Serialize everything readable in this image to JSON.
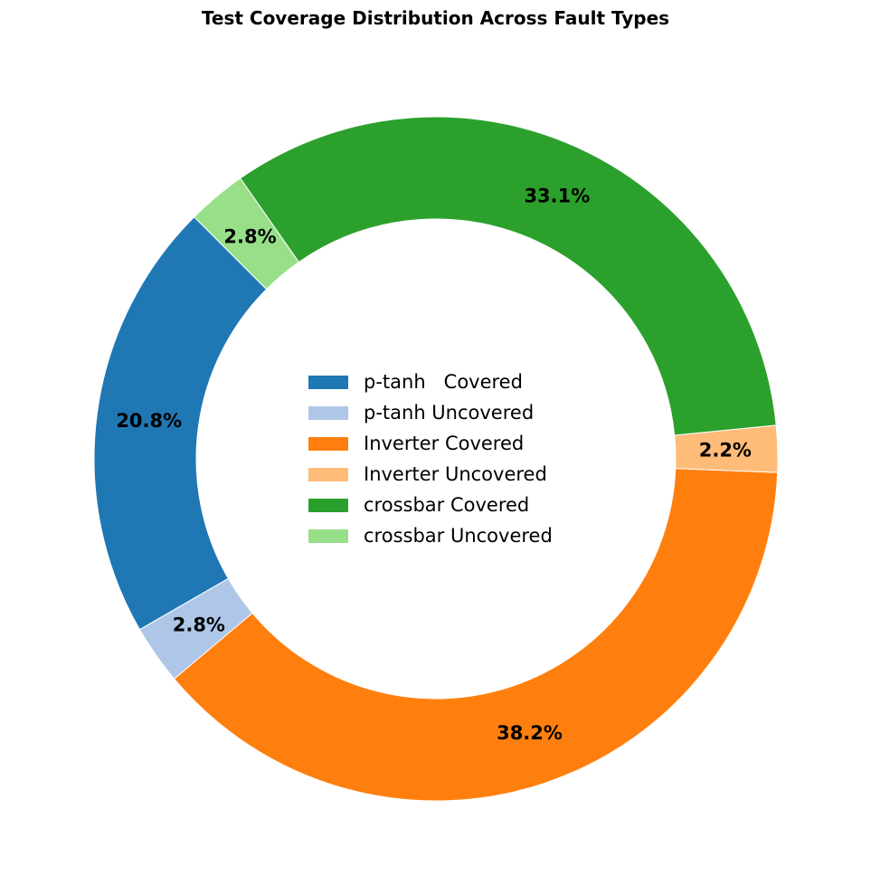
{
  "chart_data": {
    "type": "pie",
    "style": "donut",
    "title": "Test Coverage Distribution Across Fault Types",
    "legend_position": "center",
    "slices": [
      {
        "label": "p-tanh   Covered",
        "value": 20.8,
        "pct_label": "20.8%",
        "color": "#1f77b4"
      },
      {
        "label": "p-tanh Uncovered",
        "value": 2.8,
        "pct_label": "2.8%",
        "color": "#aec7e8"
      },
      {
        "label": "Inverter Covered",
        "value": 38.2,
        "pct_label": "38.2%",
        "color": "#ff7f0e"
      },
      {
        "label": "Inverter Uncovered",
        "value": 2.2,
        "pct_label": "2.2%",
        "color": "#ffbb78"
      },
      {
        "label": "crossbar Covered",
        "value": 33.1,
        "pct_label": "33.1%",
        "color": "#2ca02c"
      },
      {
        "label": "crossbar Uncovered",
        "value": 2.8,
        "pct_label": "2.8%",
        "color": "#98df8a"
      }
    ]
  }
}
